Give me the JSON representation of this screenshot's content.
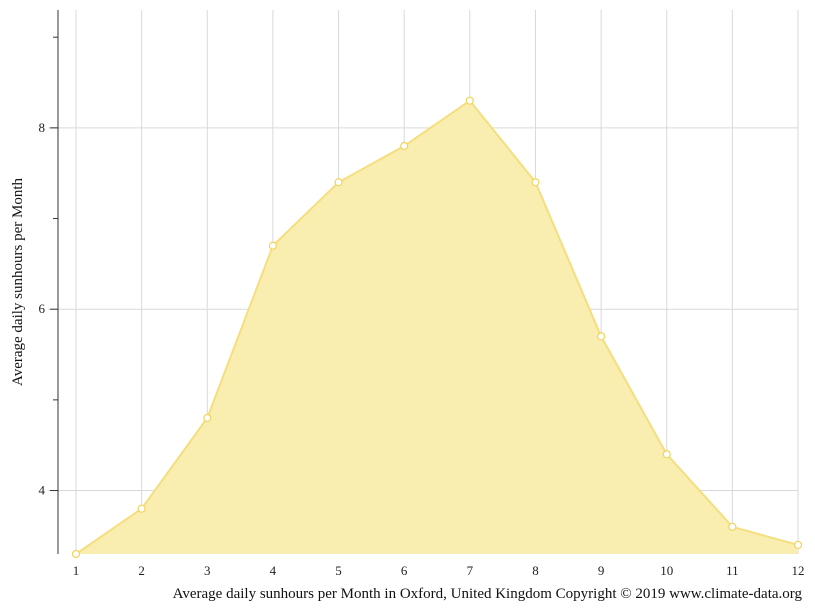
{
  "chart_data": {
    "type": "area",
    "x": [
      1,
      2,
      3,
      4,
      5,
      6,
      7,
      8,
      9,
      10,
      11,
      12
    ],
    "series": [
      {
        "values": [
          3.3,
          3.8,
          4.8,
          6.7,
          7.4,
          7.8,
          8.3,
          7.4,
          5.7,
          4.4,
          3.6,
          3.4
        ]
      }
    ],
    "ylabel": "Average daily sunhours per Month",
    "xlabel": "",
    "caption": "Average daily sunhours per Month in Oxford, United Kingdom Copyright © 2019 www.climate-data.org",
    "xlim": [
      1,
      12
    ],
    "ylim": [
      3.3,
      9.3
    ],
    "y_ticks_labeled": [
      4,
      6,
      8
    ],
    "y_ticks_minor": [
      5,
      7,
      9
    ],
    "grid": true,
    "colors": {
      "fill": "#f9eeaf",
      "stroke": "#f5de7e",
      "marker": "#f2d45c"
    }
  }
}
